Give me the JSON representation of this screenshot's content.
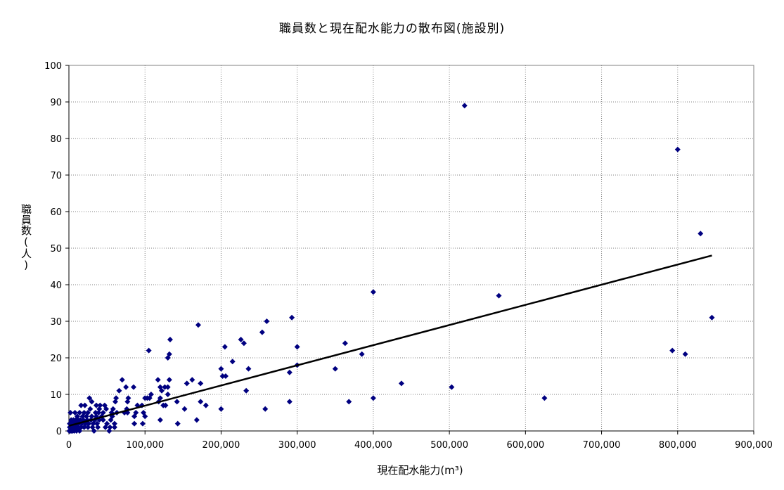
{
  "chart_data": {
    "type": "scatter",
    "title": "職員数と現在配水能力の散布図(施設別)",
    "xlabel": "現在配水能力(m³)",
    "ylabel": "職員数(人)",
    "xlim": [
      0,
      900000
    ],
    "ylim": [
      0,
      100
    ],
    "x_ticks": [
      0,
      100000,
      200000,
      300000,
      400000,
      500000,
      600000,
      700000,
      800000,
      900000
    ],
    "x_tick_labels": [
      "0",
      "100,000",
      "200,000",
      "300,000",
      "400,000",
      "500,000",
      "600,000",
      "700,000",
      "800,000",
      "900,000"
    ],
    "y_ticks": [
      0,
      10,
      20,
      30,
      40,
      50,
      60,
      70,
      80,
      90,
      100
    ],
    "y_tick_labels": [
      "0",
      "10",
      "20",
      "30",
      "40",
      "50",
      "60",
      "70",
      "80",
      "90",
      "100"
    ],
    "grid": true,
    "marker_color": "#000080",
    "trendline": {
      "color": "#000000",
      "points": [
        [
          0,
          1.4
        ],
        [
          845000,
          48
        ]
      ]
    },
    "points": [
      [
        520000,
        89
      ],
      [
        800000,
        77
      ],
      [
        830000,
        54
      ],
      [
        400000,
        38
      ],
      [
        565000,
        37
      ],
      [
        845000,
        31
      ],
      [
        793000,
        22
      ],
      [
        810000,
        21
      ],
      [
        625000,
        9
      ],
      [
        503000,
        12
      ],
      [
        437000,
        13
      ],
      [
        400000,
        9
      ],
      [
        385000,
        21
      ],
      [
        368000,
        8
      ],
      [
        363000,
        24
      ],
      [
        350000,
        17
      ],
      [
        300000,
        23
      ],
      [
        300000,
        18
      ],
      [
        293000,
        31
      ],
      [
        290000,
        16
      ],
      [
        290000,
        8
      ],
      [
        260000,
        30
      ],
      [
        258000,
        6
      ],
      [
        254000,
        27
      ],
      [
        236000,
        17
      ],
      [
        233000,
        11
      ],
      [
        230000,
        24
      ],
      [
        226000,
        25
      ],
      [
        215000,
        19
      ],
      [
        206000,
        15
      ],
      [
        205000,
        23
      ],
      [
        202000,
        15
      ],
      [
        200000,
        17
      ],
      [
        200000,
        6
      ],
      [
        180000,
        7
      ],
      [
        173000,
        8
      ],
      [
        173000,
        13
      ],
      [
        170000,
        29
      ],
      [
        168000,
        3
      ],
      [
        162000,
        14
      ],
      [
        155000,
        13
      ],
      [
        152000,
        6
      ],
      [
        143000,
        2
      ],
      [
        142000,
        8
      ],
      [
        133000,
        25
      ],
      [
        132000,
        14
      ],
      [
        132000,
        21
      ],
      [
        130000,
        10
      ],
      [
        130000,
        12
      ],
      [
        130000,
        20
      ],
      [
        127000,
        7
      ],
      [
        126000,
        12
      ],
      [
        124000,
        7
      ],
      [
        122000,
        11
      ],
      [
        120000,
        3
      ],
      [
        120000,
        9
      ],
      [
        120000,
        12
      ],
      [
        118000,
        8
      ],
      [
        117000,
        14
      ],
      [
        108000,
        10
      ],
      [
        106000,
        9
      ],
      [
        105000,
        22
      ],
      [
        103000,
        9
      ],
      [
        100000,
        9
      ],
      [
        100000,
        4
      ],
      [
        98000,
        5
      ],
      [
        97000,
        2
      ],
      [
        96000,
        7
      ],
      [
        90000,
        7
      ],
      [
        88000,
        5
      ],
      [
        86000,
        4
      ],
      [
        86000,
        2
      ],
      [
        85000,
        12
      ],
      [
        78000,
        9
      ],
      [
        77000,
        8
      ],
      [
        77000,
        5
      ],
      [
        76000,
        6
      ],
      [
        75000,
        12
      ],
      [
        73000,
        5
      ],
      [
        70000,
        14
      ],
      [
        66000,
        11
      ],
      [
        63000,
        5
      ],
      [
        62000,
        9
      ],
      [
        61000,
        8
      ],
      [
        60000,
        2
      ],
      [
        60000,
        1
      ],
      [
        58000,
        6
      ],
      [
        57000,
        4
      ],
      [
        56000,
        5
      ],
      [
        55000,
        3
      ],
      [
        54000,
        1
      ],
      [
        53000,
        0
      ],
      [
        50000,
        2
      ],
      [
        49000,
        6
      ],
      [
        48000,
        1
      ],
      [
        47000,
        7
      ],
      [
        45000,
        3
      ],
      [
        45000,
        5
      ],
      [
        43000,
        4
      ],
      [
        41000,
        7
      ],
      [
        40000,
        6
      ],
      [
        40000,
        3
      ],
      [
        39000,
        5
      ],
      [
        38000,
        1
      ],
      [
        37000,
        2
      ],
      [
        36000,
        4
      ],
      [
        36000,
        7
      ],
      [
        35000,
        5
      ],
      [
        34000,
        3
      ],
      [
        33000,
        0
      ],
      [
        32000,
        2
      ],
      [
        31000,
        1
      ],
      [
        30000,
        4
      ],
      [
        30000,
        8
      ],
      [
        29000,
        3
      ],
      [
        28000,
        6
      ],
      [
        27000,
        9
      ],
      [
        26000,
        2
      ],
      [
        25000,
        5
      ],
      [
        25000,
        1
      ],
      [
        24000,
        3
      ],
      [
        23000,
        4
      ],
      [
        22000,
        2
      ],
      [
        21000,
        7
      ],
      [
        20000,
        1
      ],
      [
        20000,
        5
      ],
      [
        19000,
        3
      ],
      [
        18000,
        4
      ],
      [
        17000,
        2
      ],
      [
        16000,
        7
      ],
      [
        16000,
        1
      ],
      [
        15000,
        3
      ],
      [
        14000,
        0
      ],
      [
        14000,
        5
      ],
      [
        13000,
        2
      ],
      [
        12000,
        1
      ],
      [
        12000,
        3
      ],
      [
        11000,
        4
      ],
      [
        10000,
        2
      ],
      [
        10000,
        0
      ],
      [
        9000,
        1
      ],
      [
        9000,
        3
      ],
      [
        8000,
        2
      ],
      [
        8000,
        5
      ],
      [
        7000,
        1
      ],
      [
        7000,
        0
      ],
      [
        6000,
        2
      ],
      [
        6000,
        3
      ],
      [
        5000,
        1
      ],
      [
        5000,
        0
      ],
      [
        4000,
        2
      ],
      [
        4000,
        1
      ],
      [
        3000,
        0
      ],
      [
        3000,
        3
      ],
      [
        2000,
        1
      ],
      [
        2000,
        5
      ],
      [
        1500,
        0
      ],
      [
        1000,
        2
      ],
      [
        1000,
        1
      ],
      [
        500,
        0
      ]
    ]
  }
}
